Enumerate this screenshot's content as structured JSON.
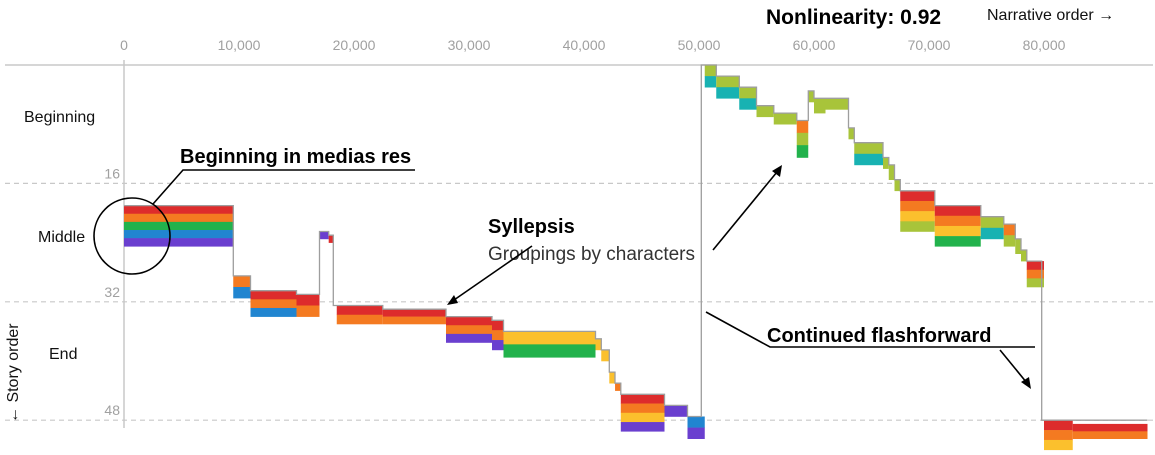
{
  "header": {
    "metric_label": "Nonlinearity: 0.92",
    "x_axis_label": "Narrative order →",
    "y_axis_label": "← Story order"
  },
  "sections": [
    "Beginning",
    "Middle",
    "End"
  ],
  "annotations": {
    "medias_res": "Beginning in medias res",
    "syllepsis_title": "Syllepsis",
    "syllepsis_sub": "Groupings by characters",
    "flashforward": "Continued flashforward"
  },
  "colors": {
    "red": "#dd2c2c",
    "orange": "#f47a21",
    "green": "#22b24c",
    "blue": "#2185d0",
    "purple": "#6a3fcf",
    "yellow": "#fbc02d",
    "lime": "#a8c43a",
    "teal": "#18b2b2",
    "line": "#9e9e9e",
    "grid": "#c8c8c8"
  },
  "chart_data": {
    "type": "narrative-timeline",
    "x_ticks": [
      "0",
      "10,000",
      "20,000",
      "30,000",
      "40,000",
      "50,000",
      "60,000",
      "70,000",
      "80,000"
    ],
    "y_ticks": [
      "16",
      "32",
      "48"
    ],
    "xlim": [
      0,
      89000
    ],
    "ylim": [
      0,
      48
    ],
    "segments": [
      {
        "x": [
          0,
          9500
        ],
        "y": [
          19,
          24.5
        ],
        "colors": [
          "red",
          "orange",
          "green",
          "blue",
          "purple"
        ]
      },
      {
        "x": [
          9500,
          11000
        ],
        "y": [
          28.5,
          31.5
        ],
        "colors": [
          "orange",
          "blue"
        ]
      },
      {
        "x": [
          11000,
          15000
        ],
        "y": [
          30.5,
          34
        ],
        "colors": [
          "red",
          "orange",
          "blue"
        ]
      },
      {
        "x": [
          15000,
          17000
        ],
        "y": [
          31,
          34
        ],
        "colors": [
          "red",
          "orange"
        ]
      },
      {
        "x": [
          17000,
          17800
        ],
        "y": [
          22.5,
          23.5
        ],
        "colors": [
          "purple"
        ]
      },
      {
        "x": [
          17800,
          18200
        ],
        "y": [
          23,
          24
        ],
        "colors": [
          "red"
        ]
      },
      {
        "x": [
          18500,
          22500
        ],
        "y": [
          32.5,
          35
        ],
        "colors": [
          "red",
          "orange"
        ]
      },
      {
        "x": [
          22500,
          28000
        ],
        "y": [
          33,
          35
        ],
        "colors": [
          "red",
          "orange"
        ]
      },
      {
        "x": [
          28000,
          32000
        ],
        "y": [
          34,
          37.5
        ],
        "colors": [
          "red",
          "orange",
          "purple"
        ]
      },
      {
        "x": [
          32000,
          33000
        ],
        "y": [
          34.5,
          38.5
        ],
        "colors": [
          "red",
          "orange",
          "purple"
        ]
      },
      {
        "x": [
          33000,
          41000
        ],
        "y": [
          36,
          39.5
        ],
        "colors": [
          "yellow",
          "green"
        ]
      },
      {
        "x": [
          41000,
          41500
        ],
        "y": [
          37,
          38.5
        ],
        "colors": [
          "yellow"
        ]
      },
      {
        "x": [
          41500,
          42200
        ],
        "y": [
          38.5,
          40
        ],
        "colors": [
          "yellow"
        ]
      },
      {
        "x": [
          42200,
          42700
        ],
        "y": [
          41.5,
          43
        ],
        "colors": [
          "yellow"
        ]
      },
      {
        "x": [
          42700,
          43200
        ],
        "y": [
          43,
          44
        ],
        "colors": [
          "orange"
        ]
      },
      {
        "x": [
          43200,
          47000
        ],
        "y": [
          44.5,
          49.5
        ],
        "colors": [
          "red",
          "orange",
          "yellow",
          "purple"
        ]
      },
      {
        "x": [
          47000,
          49000
        ],
        "y": [
          46,
          47.5
        ],
        "colors": [
          "purple"
        ]
      },
      {
        "x": [
          49000,
          50500
        ],
        "y": [
          47.5,
          50.5
        ],
        "colors": [
          "blue",
          "purple"
        ]
      },
      {
        "x": [
          50500,
          51500
        ],
        "y": [
          0,
          3
        ],
        "colors": [
          "lime",
          "teal"
        ]
      },
      {
        "x": [
          51500,
          53500
        ],
        "y": [
          1.5,
          4.5
        ],
        "colors": [
          "lime",
          "teal"
        ]
      },
      {
        "x": [
          53500,
          55000
        ],
        "y": [
          3,
          6
        ],
        "colors": [
          "lime",
          "teal"
        ]
      },
      {
        "x": [
          55000,
          56500
        ],
        "y": [
          5.5,
          7
        ],
        "colors": [
          "lime"
        ]
      },
      {
        "x": [
          56500,
          58500
        ],
        "y": [
          6.5,
          8
        ],
        "colors": [
          "lime"
        ]
      },
      {
        "x": [
          58500,
          59500
        ],
        "y": [
          7.5,
          12.5
        ],
        "colors": [
          "orange",
          "lime",
          "green"
        ]
      },
      {
        "x": [
          59500,
          60000
        ],
        "y": [
          3.5,
          5
        ],
        "colors": [
          "lime"
        ]
      },
      {
        "x": [
          60000,
          61000
        ],
        "y": [
          4.5,
          6.5
        ],
        "colors": [
          "lime"
        ]
      },
      {
        "x": [
          61000,
          63000
        ],
        "y": [
          4.5,
          6
        ],
        "colors": [
          "lime"
        ]
      },
      {
        "x": [
          63000,
          63500
        ],
        "y": [
          8.5,
          10
        ],
        "colors": [
          "lime"
        ]
      },
      {
        "x": [
          63500,
          66000
        ],
        "y": [
          10.5,
          13.5
        ],
        "colors": [
          "lime",
          "teal"
        ]
      },
      {
        "x": [
          66000,
          66500
        ],
        "y": [
          12.5,
          14
        ],
        "colors": [
          "lime"
        ]
      },
      {
        "x": [
          66500,
          67000
        ],
        "y": [
          13.5,
          15.5
        ],
        "colors": [
          "lime"
        ]
      },
      {
        "x": [
          67000,
          67500
        ],
        "y": [
          15.5,
          17
        ],
        "colors": [
          "lime"
        ]
      },
      {
        "x": [
          67500,
          70500
        ],
        "y": [
          17,
          22.5
        ],
        "colors": [
          "red",
          "orange",
          "yellow",
          "lime"
        ]
      },
      {
        "x": [
          70500,
          74500
        ],
        "y": [
          19,
          24.5
        ],
        "colors": [
          "red",
          "orange",
          "yellow",
          "green"
        ]
      },
      {
        "x": [
          74500,
          76500
        ],
        "y": [
          20.5,
          23.5
        ],
        "colors": [
          "lime",
          "teal"
        ]
      },
      {
        "x": [
          76500,
          77500
        ],
        "y": [
          21.5,
          24.5
        ],
        "colors": [
          "orange",
          "lime"
        ]
      },
      {
        "x": [
          77500,
          78000
        ],
        "y": [
          23.5,
          25.5
        ],
        "colors": [
          "lime"
        ]
      },
      {
        "x": [
          78000,
          78500
        ],
        "y": [
          25,
          26.5
        ],
        "colors": [
          "lime"
        ]
      },
      {
        "x": [
          78500,
          80000
        ],
        "y": [
          26.5,
          30
        ],
        "colors": [
          "red",
          "orange",
          "lime"
        ]
      },
      {
        "x": [
          80000,
          82500
        ],
        "y": [
          48,
          52
        ],
        "colors": [
          "red",
          "orange",
          "yellow"
        ]
      },
      {
        "x": [
          82500,
          89000
        ],
        "y": [
          48.5,
          50.5
        ],
        "colors": [
          "red",
          "orange"
        ]
      }
    ],
    "path": [
      [
        0,
        19
      ],
      [
        9500,
        19
      ],
      [
        9500,
        28.5
      ],
      [
        11000,
        28.5
      ],
      [
        11000,
        30.5
      ],
      [
        15000,
        30.5
      ],
      [
        15000,
        31
      ],
      [
        17000,
        31
      ],
      [
        17000,
        22.5
      ],
      [
        17800,
        22.5
      ],
      [
        17800,
        23
      ],
      [
        18200,
        23
      ],
      [
        18200,
        32.5
      ],
      [
        22500,
        32.5
      ],
      [
        22500,
        33
      ],
      [
        28000,
        33
      ],
      [
        28000,
        34
      ],
      [
        32000,
        34
      ],
      [
        32000,
        34.5
      ],
      [
        33000,
        34.5
      ],
      [
        33000,
        36
      ],
      [
        41000,
        36
      ],
      [
        41000,
        37
      ],
      [
        41500,
        37
      ],
      [
        41500,
        38.5
      ],
      [
        42200,
        38.5
      ],
      [
        42200,
        41.5
      ],
      [
        42700,
        41.5
      ],
      [
        42700,
        43
      ],
      [
        43200,
        43
      ],
      [
        43200,
        44.5
      ],
      [
        47000,
        44.5
      ],
      [
        47000,
        46
      ],
      [
        49000,
        46
      ],
      [
        49000,
        47.5
      ],
      [
        50200,
        47.5
      ],
      [
        50200,
        0
      ],
      [
        51500,
        0
      ],
      [
        51500,
        1.5
      ],
      [
        53500,
        1.5
      ],
      [
        53500,
        3
      ],
      [
        55000,
        3
      ],
      [
        55000,
        5.5
      ],
      [
        56500,
        5.5
      ],
      [
        56500,
        6.5
      ],
      [
        58500,
        6.5
      ],
      [
        58500,
        7.5
      ],
      [
        59500,
        7.5
      ],
      [
        59500,
        3.5
      ],
      [
        60000,
        3.5
      ],
      [
        60000,
        4.5
      ],
      [
        63000,
        4.5
      ],
      [
        63000,
        8.5
      ],
      [
        63500,
        8.5
      ],
      [
        63500,
        10.5
      ],
      [
        66000,
        10.5
      ],
      [
        66000,
        12.5
      ],
      [
        66500,
        12.5
      ],
      [
        66500,
        13.5
      ],
      [
        67000,
        13.5
      ],
      [
        67000,
        15.5
      ],
      [
        67500,
        15.5
      ],
      [
        67500,
        17
      ],
      [
        70500,
        17
      ],
      [
        70500,
        19
      ],
      [
        74500,
        19
      ],
      [
        74500,
        20.5
      ],
      [
        76500,
        20.5
      ],
      [
        76500,
        21.5
      ],
      [
        77500,
        21.5
      ],
      [
        77500,
        23.5
      ],
      [
        78000,
        23.5
      ],
      [
        78000,
        25
      ],
      [
        78500,
        25
      ],
      [
        78500,
        26.5
      ],
      [
        79800,
        26.5
      ],
      [
        79800,
        48
      ],
      [
        89000,
        48
      ]
    ]
  }
}
